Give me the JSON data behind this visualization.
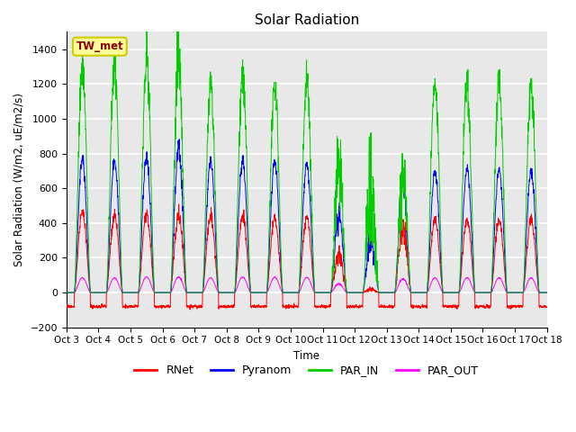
{
  "title": "Solar Radiation",
  "ylabel": "Solar Radiation (W/m2, uE/m2/s)",
  "xlabel": "Time",
  "ylim": [
    -200,
    1500
  ],
  "yticks": [
    -200,
    0,
    200,
    400,
    600,
    800,
    1000,
    1200,
    1400
  ],
  "xtick_labels": [
    "Oct 3",
    "Oct 4",
    "Oct 5",
    "Oct 6",
    "Oct 7",
    "Oct 8",
    "Oct 9",
    "Oct 10",
    "Oct 11",
    "Oct 12",
    "Oct 13",
    "Oct 14",
    "Oct 15",
    "Oct 16",
    "Oct 17",
    "Oct 18"
  ],
  "colors": {
    "RNet": "#ff0000",
    "Pyranom": "#0000ff",
    "PAR_IN": "#00cc00",
    "PAR_OUT": "#ff00ff"
  },
  "station_label": "TW_met",
  "station_label_color": "#8b0000",
  "station_box_face": "#ffff99",
  "station_box_edge": "#cccc00",
  "background_color": "#e8e8e8",
  "grid_color": "#ffffff",
  "legend_labels": [
    "RNet",
    "Pyranom",
    "PAR_IN",
    "PAR_OUT"
  ]
}
